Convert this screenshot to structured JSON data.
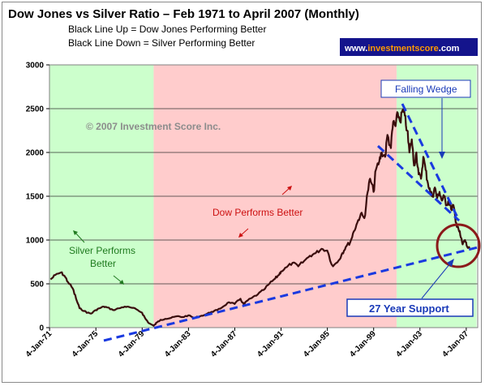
{
  "title": "Dow Jones vs Silver Ratio – Feb 1971 to April 2007 (Monthly)",
  "subtitle_lines": [
    "Black Line Up = Dow Jones Performing Better",
    "Black Line Down = Silver Performing Better"
  ],
  "site_badge": {
    "prefix": "www.",
    "brand": "investmentscore",
    "suffix": ".com",
    "bg_color": "#14148c",
    "brand_color": "#ff9900"
  },
  "watermark": "© 2007 Investment Score Inc.",
  "annotations": {
    "silver_line1": "Silver Performs",
    "silver_line2": "Better",
    "dow": "Dow Performs Better",
    "falling_wedge": "Falling Wedge",
    "support": "27 Year Support"
  },
  "colors": {
    "green_band": "#ccffcc",
    "red_band": "#ffcccc",
    "series_line": "#3a0d0d",
    "trend_lines": "#1a3ae0",
    "circle": "#8b1a1a"
  },
  "chart_data": {
    "type": "line",
    "title": "Dow Jones vs Silver Ratio – Feb 1971 to April 2007 (Monthly)",
    "xlabel": "",
    "ylabel": "",
    "ylim": [
      0,
      3000
    ],
    "yticks": [
      0,
      500,
      1000,
      1500,
      2000,
      2500,
      3000
    ],
    "xlim": [
      "1971-01-04",
      "2007-12-04"
    ],
    "xticks": [
      "4-Jan-71",
      "4-Jan-75",
      "4-Jan-79",
      "4-Jan-83",
      "4-Jan-87",
      "4-Jan-91",
      "4-Jan-95",
      "4-Jan-99",
      "4-Jan-03",
      "4-Jan-07"
    ],
    "grid": "horizontal",
    "regions": [
      {
        "from": 1971.0,
        "to": 1980.0,
        "meaning": "Silver Performs Better"
      },
      {
        "from": 1980.0,
        "to": 2001.0,
        "meaning": "Dow Performs Better"
      },
      {
        "from": 2001.0,
        "to": 2007.9,
        "meaning": "Silver Performs Better"
      }
    ],
    "series": [
      {
        "x": [
          1971.1,
          1971.5,
          1972.0,
          1972.3,
          1972.6,
          1973.0,
          1973.3,
          1973.6,
          1974.0,
          1974.3,
          1974.6,
          1975.0,
          1975.3,
          1975.7,
          1976.0,
          1976.5,
          1977.0,
          1977.5,
          1978.0,
          1978.5,
          1979.0,
          1979.3,
          1979.6,
          1980.0,
          1980.3,
          1980.6,
          1981.0,
          1981.5,
          1982.0,
          1982.5,
          1983.0,
          1983.5,
          1984.0,
          1984.5,
          1985.0,
          1985.5,
          1986.0,
          1986.5,
          1987.0,
          1987.5,
          1987.8,
          1988.0,
          1988.5,
          1989.0,
          1989.5,
          1990.0,
          1990.5,
          1990.8,
          1991.0,
          1991.5,
          1992.0,
          1992.5,
          1993.0,
          1993.5,
          1994.0,
          1994.5,
          1995.0,
          1995.5,
          1996.0,
          1996.3,
          1996.6,
          1997.0,
          1997.3,
          1997.6,
          1997.9,
          1998.2,
          1998.5,
          1998.7,
          1999.0,
          1999.2,
          1999.5,
          1999.7,
          2000.0,
          2000.2,
          2000.5,
          2000.7,
          2000.9,
          2001.1,
          2001.3,
          2001.5,
          2001.7,
          2001.9,
          2002.1,
          2002.3,
          2002.5,
          2002.7,
          2002.9,
          2003.1,
          2003.3,
          2003.5,
          2003.7,
          2003.9,
          2004.1,
          2004.3,
          2004.5,
          2004.7,
          2004.9,
          2005.1,
          2005.3,
          2005.5,
          2005.7,
          2005.9,
          2006.1,
          2006.3,
          2006.5,
          2006.7,
          2006.9,
          2007.1,
          2007.3
        ],
        "values": [
          550,
          600,
          630,
          590,
          520,
          450,
          330,
          220,
          190,
          170,
          160,
          200,
          220,
          240,
          230,
          200,
          220,
          240,
          230,
          210,
          170,
          100,
          50,
          20,
          60,
          90,
          100,
          110,
          130,
          120,
          140,
          110,
          130,
          150,
          180,
          200,
          240,
          290,
          270,
          330,
          260,
          300,
          340,
          380,
          430,
          500,
          560,
          600,
          640,
          690,
          740,
          700,
          760,
          820,
          850,
          900,
          880,
          700,
          770,
          850,
          920,
          980,
          1100,
          1200,
          1300,
          1250,
          1550,
          1700,
          1550,
          1800,
          1900,
          2000,
          1950,
          2200,
          2050,
          2350,
          2300,
          2450,
          2350,
          2480,
          2420,
          2250,
          2000,
          2150,
          1850,
          2000,
          1750,
          1700,
          1950,
          1800,
          1650,
          1550,
          1500,
          1600,
          1480,
          1550,
          1450,
          1500,
          1400,
          1450,
          1350,
          1400,
          1200,
          1150,
          1050,
          950,
          1000,
          920,
          900
        ]
      }
    ]
  }
}
